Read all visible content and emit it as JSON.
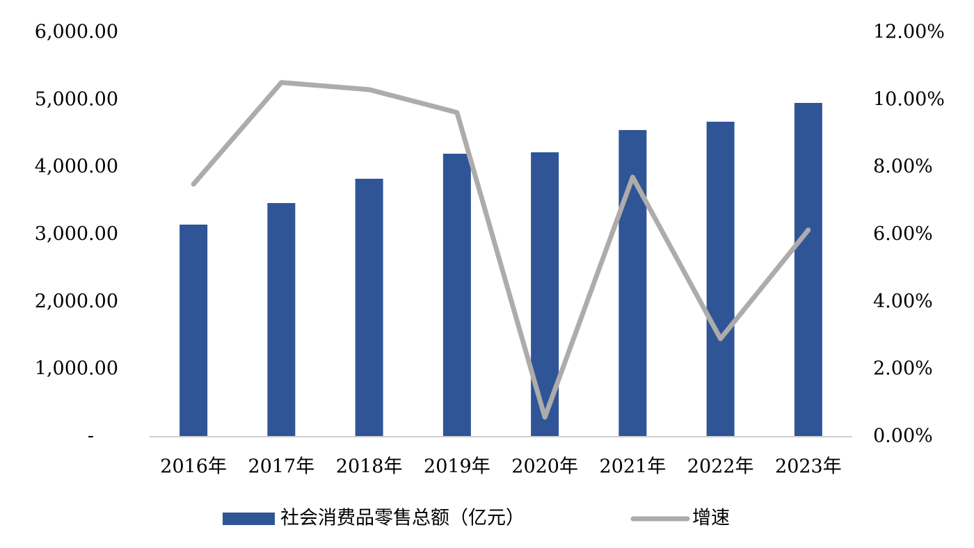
{
  "chart_data": {
    "type": "bar",
    "categories": [
      "2016年",
      "2017年",
      "2018年",
      "2019年",
      "2020年",
      "2021年",
      "2022年",
      "2023年"
    ],
    "series": [
      {
        "name": "社会消费品零售总额（亿元）",
        "type": "bar",
        "color": "#2f5597",
        "values": [
          3150,
          3470,
          3831,
          4203,
          4224,
          4554,
          4678,
          4957
        ]
      },
      {
        "name": "增速",
        "type": "line",
        "axis": "y2",
        "color": "#aeabab",
        "values": [
          7.5,
          10.52,
          10.31,
          9.63,
          0.58,
          7.71,
          2.91,
          6.14
        ]
      }
    ],
    "ylim": [
      0,
      6000
    ],
    "yticks": [
      {
        "value": 0,
        "label": "-"
      },
      {
        "value": 1000,
        "label": "1,000.00"
      },
      {
        "value": 2000,
        "label": "2,000.00"
      },
      {
        "value": 3000,
        "label": "3,000.00"
      },
      {
        "value": 4000,
        "label": "4,000.00"
      },
      {
        "value": 5000,
        "label": "5,000.00"
      },
      {
        "value": 6000,
        "label": "6,000.00"
      }
    ],
    "y2lim": [
      0,
      12
    ],
    "y2ticks": [
      {
        "value": 0,
        "label": "0.00%"
      },
      {
        "value": 2,
        "label": "2.00%"
      },
      {
        "value": 4,
        "label": "4.00%"
      },
      {
        "value": 6,
        "label": "6.00%"
      },
      {
        "value": 8,
        "label": "8.00%"
      },
      {
        "value": 10,
        "label": "10.00%"
      },
      {
        "value": 12,
        "label": "12.00%"
      }
    ],
    "grid": false,
    "legend": "bottom"
  }
}
